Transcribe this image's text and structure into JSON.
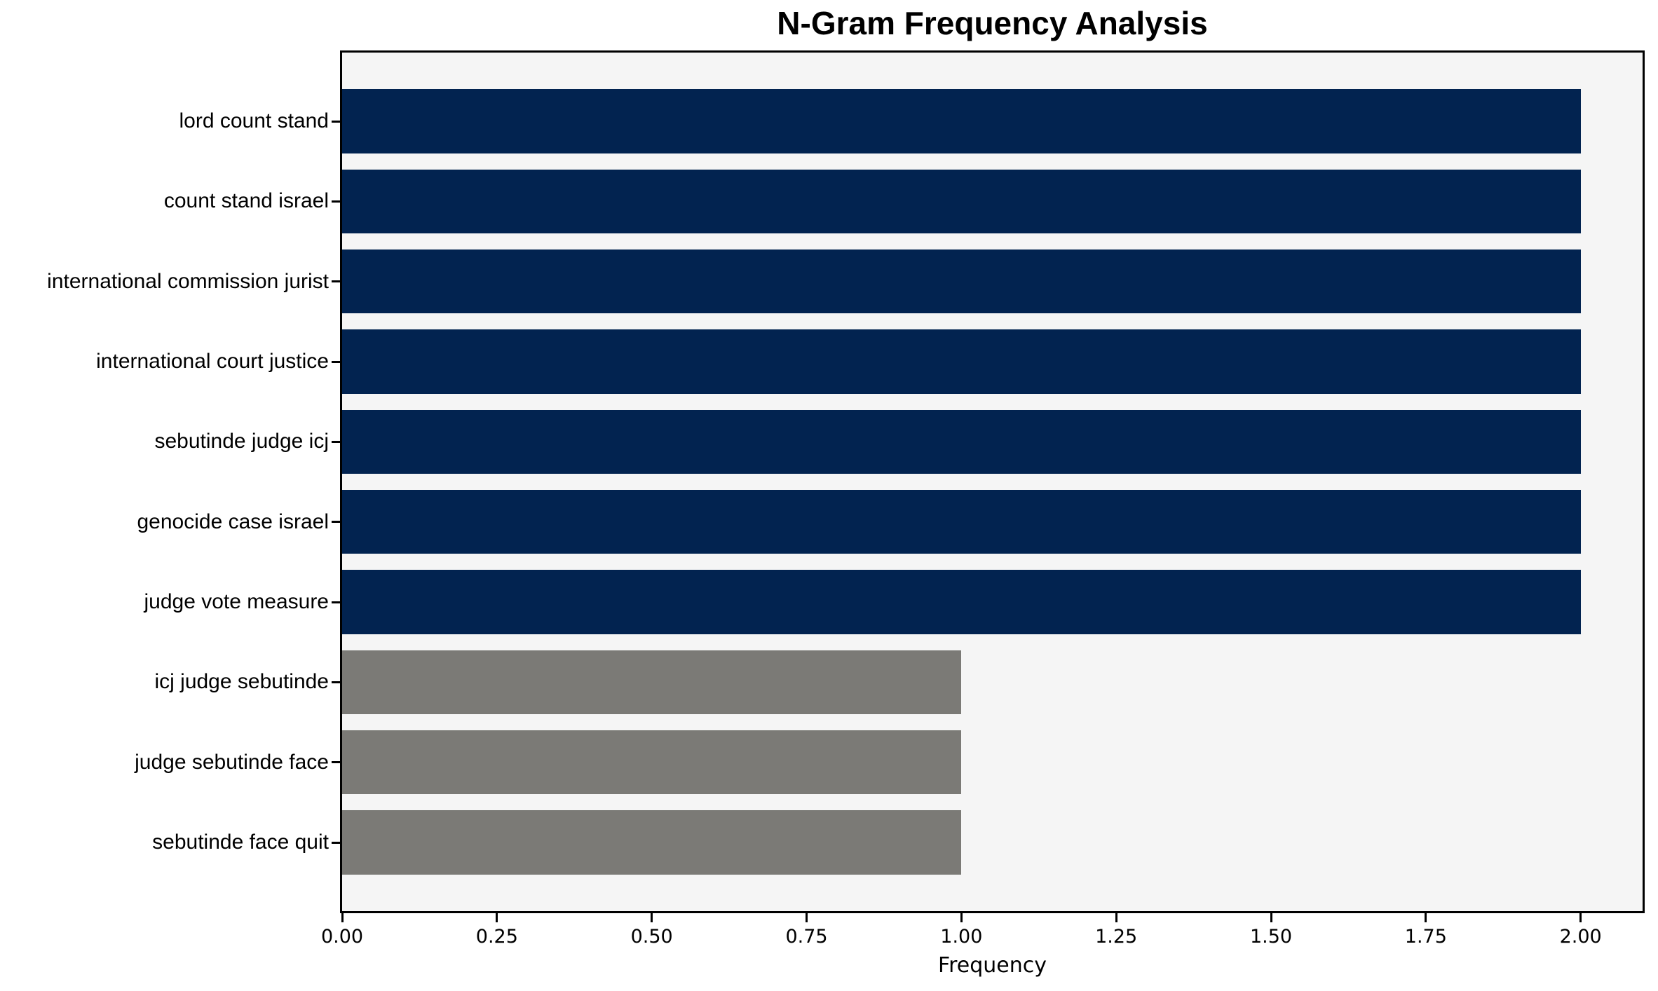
{
  "chart_data": {
    "type": "bar",
    "orientation": "horizontal",
    "title": "N-Gram Frequency Analysis",
    "xlabel": "Frequency",
    "ylabel": "",
    "categories": [
      "lord count stand",
      "count stand israel",
      "international commission jurist",
      "international court justice",
      "sebutinde judge icj",
      "genocide case israel",
      "judge vote measure",
      "icj judge sebutinde",
      "judge sebutinde face",
      "sebutinde face quit"
    ],
    "values": [
      2.0,
      2.0,
      2.0,
      2.0,
      2.0,
      2.0,
      2.0,
      1.0,
      1.0,
      1.0
    ],
    "bar_colors": [
      "#022350",
      "#022350",
      "#022350",
      "#022350",
      "#022350",
      "#022350",
      "#022350",
      "#7b7a76",
      "#7b7a76",
      "#7b7a76"
    ],
    "xlim": [
      0,
      2.1
    ],
    "xticks": [
      0,
      0.25,
      0.5,
      0.75,
      1.0,
      1.25,
      1.5,
      1.75,
      2.0
    ],
    "xtick_labels": [
      "0.00",
      "0.25",
      "0.50",
      "0.75",
      "1.00",
      "1.25",
      "1.50",
      "1.75",
      "2.00"
    ],
    "grid": false,
    "legend_position": "none",
    "colors": {
      "bar_high": "#022350",
      "bar_low": "#7b7a76",
      "plot_background": "#f5f5f5",
      "figure_background": "#ffffff",
      "axis": "#000000"
    }
  }
}
